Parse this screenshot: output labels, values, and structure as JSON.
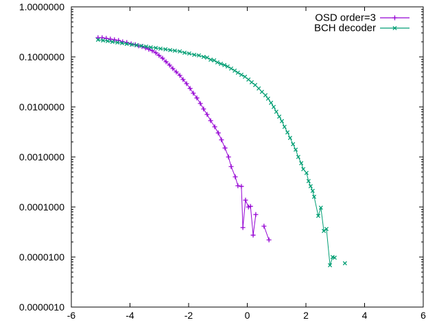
{
  "window": {
    "background": "#ffffff"
  },
  "axes": {
    "x": {
      "tick_values": [
        -6,
        -4,
        -2,
        0,
        2,
        4,
        6
      ],
      "tick_labels": [
        "-6",
        "-4",
        "-2",
        "0",
        "2",
        "4",
        "6"
      ]
    },
    "y": {
      "scale": "log",
      "tick_exponents": [
        0,
        -1,
        -2,
        -3,
        -4,
        -5,
        -6
      ],
      "tick_labels": [
        "1.0000000",
        "0.1000000",
        "0.0100000",
        "0.0010000",
        "0.0001000",
        "0.0000100",
        "0.0000010"
      ]
    }
  },
  "legend": {
    "position": "top-right",
    "entries": [
      {
        "label": "OSD order=3",
        "color": "#9400D3",
        "marker": "plus"
      },
      {
        "label": "BCH decoder",
        "color": "#009E73",
        "marker": "times"
      }
    ]
  },
  "chart_data": {
    "type": "line",
    "title": "",
    "xlabel": "",
    "ylabel": "",
    "xlim": [
      -6,
      6
    ],
    "ylim": [
      1e-06,
      1
    ],
    "y_scale": "log",
    "grid": false,
    "legend_position": "top-right",
    "series": [
      {
        "name": "OSD order=3",
        "color": "#9400D3",
        "marker": "plus",
        "segments": [
          [
            [
              -5.09,
              0.242
            ],
            [
              -4.95,
              0.242
            ],
            [
              -4.81,
              0.234
            ],
            [
              -4.67,
              0.227
            ],
            [
              -4.53,
              0.22
            ],
            [
              -4.39,
              0.213
            ],
            [
              -4.25,
              0.2
            ],
            [
              -4.11,
              0.194
            ],
            [
              -3.96,
              0.182
            ],
            [
              -3.82,
              0.176
            ],
            [
              -3.71,
              0.166
            ],
            [
              -3.59,
              0.161
            ],
            [
              -3.47,
              0.151
            ],
            [
              -3.36,
              0.142
            ],
            [
              -3.24,
              0.133
            ],
            [
              -3.12,
              0.121
            ],
            [
              -3.01,
              0.107
            ],
            [
              -2.89,
              0.094
            ],
            [
              -2.77,
              0.08
            ],
            [
              -2.65,
              0.0685
            ],
            [
              -2.54,
              0.0585
            ],
            [
              -2.42,
              0.05
            ],
            [
              -2.3,
              0.0427
            ],
            [
              -2.19,
              0.0353
            ],
            [
              -2.07,
              0.0292
            ],
            [
              -1.95,
              0.0234
            ],
            [
              -1.84,
              0.0188
            ],
            [
              -1.72,
              0.0151
            ],
            [
              -1.6,
              0.0117
            ],
            [
              -1.49,
              0.0091
            ],
            [
              -1.37,
              0.00707
            ],
            [
              -1.25,
              0.00532
            ],
            [
              -1.11,
              0.00401
            ],
            [
              -0.99,
              0.00302
            ],
            [
              -0.88,
              0.0022
            ],
            [
              -0.76,
              0.00151
            ],
            [
              -0.64,
              0.001
            ],
            [
              -0.55,
              0.000643
            ],
            [
              -0.41,
              0.000401
            ],
            [
              -0.32,
              0.000266
            ],
            [
              -0.2,
              0.000258
            ],
            [
              -0.15,
              3.88e-05
            ],
            [
              -0.06,
              0.000137
            ],
            [
              0.04,
              0.0001
            ],
            [
              0.11,
              0.000103
            ],
            [
              0.2,
              2.74e-05
            ],
            [
              0.29,
              7.07e-05
            ]
          ],
          [
            [
              0.57,
              4.13e-05
            ],
            [
              0.74,
              2.2e-05
            ]
          ]
        ],
        "isolated_points": []
      },
      {
        "name": "BCH decoder",
        "color": "#009E73",
        "marker": "times",
        "segments": [
          [
            [
              -5.09,
              0.22
            ],
            [
              -4.92,
              0.213
            ],
            [
              -4.76,
              0.207
            ],
            [
              -4.6,
              0.2
            ],
            [
              -4.43,
              0.194
            ],
            [
              -4.27,
              0.188
            ],
            [
              -4.11,
              0.182
            ],
            [
              -3.94,
              0.176
            ],
            [
              -3.78,
              0.171
            ],
            [
              -3.61,
              0.166
            ],
            [
              -3.45,
              0.161
            ],
            [
              -3.29,
              0.155
            ],
            [
              -3.12,
              0.151
            ],
            [
              -2.96,
              0.146
            ],
            [
              -2.79,
              0.142
            ],
            [
              -2.63,
              0.137
            ],
            [
              -2.47,
              0.133
            ],
            [
              -2.3,
              0.129
            ],
            [
              -2.14,
              0.121
            ],
            [
              -1.98,
              0.117
            ],
            [
              -1.81,
              0.11
            ],
            [
              -1.65,
              0.107
            ],
            [
              -1.49,
              0.1
            ],
            [
              -1.37,
              0.0969
            ],
            [
              -1.25,
              0.0881
            ],
            [
              -1.13,
              0.0854
            ],
            [
              -1.02,
              0.0777
            ],
            [
              -0.9,
              0.0729
            ],
            [
              -0.78,
              0.0685
            ],
            [
              -0.67,
              0.0643
            ],
            [
              -0.55,
              0.0585
            ],
            [
              -0.43,
              0.0532
            ],
            [
              -0.32,
              0.0484
            ],
            [
              -0.2,
              0.044
            ],
            [
              -0.08,
              0.0401
            ],
            [
              0.04,
              0.0353
            ],
            [
              0.15,
              0.0311
            ],
            [
              0.27,
              0.0274
            ],
            [
              0.39,
              0.0234
            ],
            [
              0.5,
              0.02
            ],
            [
              0.62,
              0.0171
            ],
            [
              0.71,
              0.0146
            ],
            [
              0.81,
              0.0121
            ],
            [
              0.9,
              0.01
            ],
            [
              0.99,
              0.008
            ],
            [
              1.09,
              0.0064
            ],
            [
              1.18,
              0.0052
            ],
            [
              1.27,
              0.004
            ],
            [
              1.37,
              0.0031
            ],
            [
              1.46,
              0.0024
            ],
            [
              1.56,
              0.0018
            ],
            [
              1.65,
              0.0014
            ],
            [
              1.74,
              0.001
            ],
            [
              1.84,
              0.00075
            ],
            [
              1.91,
              0.00057
            ],
            [
              2.02,
              0.00048
            ],
            [
              2.09,
              0.00033
            ],
            [
              2.16,
              0.00026
            ],
            [
              2.23,
              0.00021
            ],
            [
              2.28,
              0.00016
            ],
            [
              2.42,
              6.64e-05
            ],
            [
              2.51,
              9.69e-05
            ],
            [
              2.61,
              3.32e-05
            ],
            [
              2.7,
              3.64e-05
            ],
            [
              2.82,
              6.85e-06
            ],
            [
              2.91,
              1e-05
            ],
            [
              2.98,
              9.7e-06
            ]
          ]
        ],
        "isolated_points": [
          [
            3.33,
            7.5e-06
          ]
        ]
      }
    ]
  }
}
